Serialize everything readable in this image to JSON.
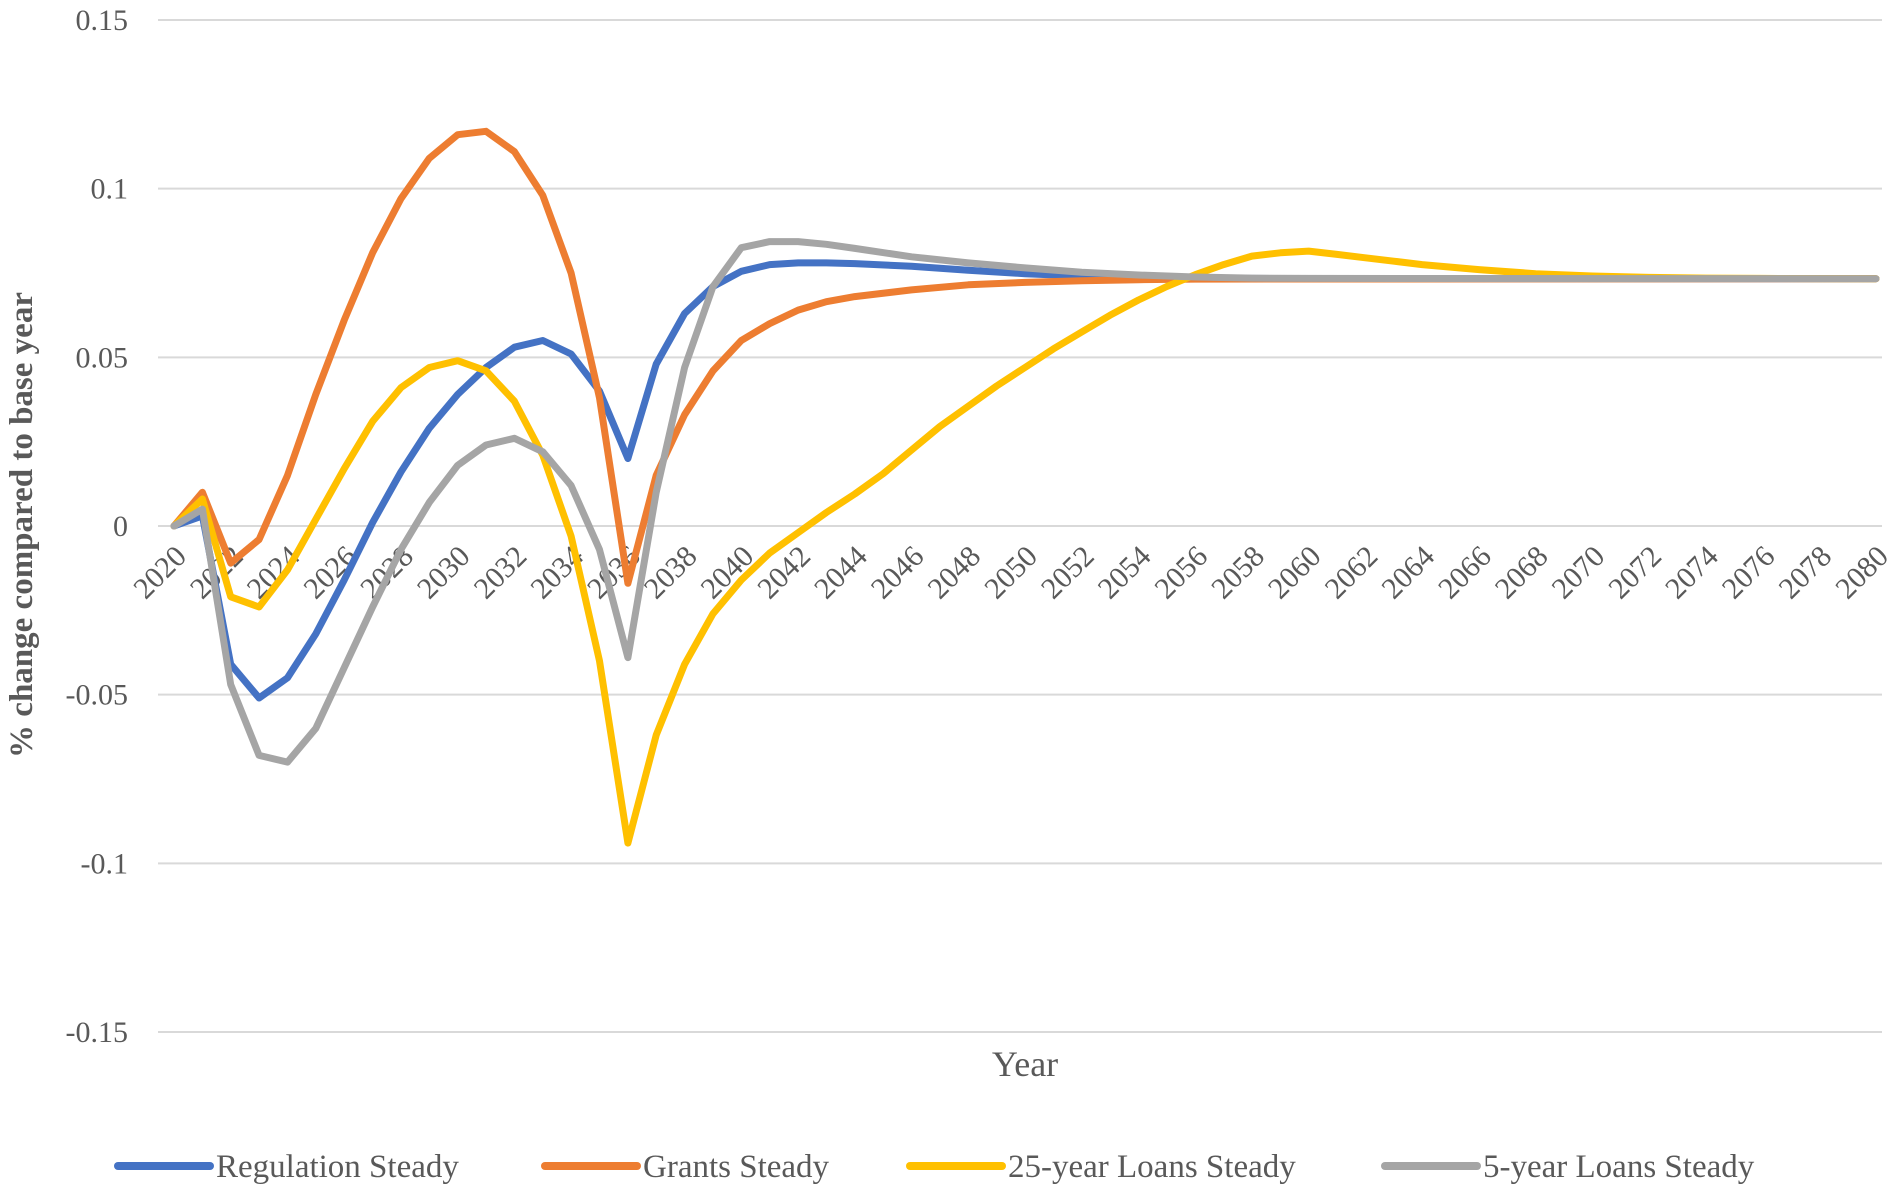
{
  "chart_data": {
    "type": "line",
    "xlabel": "Year",
    "ylabel": "% change compared to base year",
    "ylim": [
      -0.15,
      0.15
    ],
    "yticks": [
      0.15,
      0.1,
      0.05,
      0,
      -0.05,
      -0.1,
      -0.15
    ],
    "ytick_labels": [
      "0.15",
      "0.1",
      "0.05",
      "0",
      "-0.05",
      "-0.1",
      "-0.15"
    ],
    "xlim": [
      2020,
      2080
    ],
    "xtick_labels": [
      "2020",
      "2022",
      "2024",
      "2026",
      "2028",
      "2030",
      "2032",
      "2034",
      "2036",
      "2038",
      "2040",
      "2042",
      "2044",
      "2046",
      "2048",
      "2050",
      "2052",
      "2054",
      "2056",
      "2058",
      "2060",
      "2062",
      "2064",
      "2066",
      "2068",
      "2070",
      "2072",
      "2074",
      "2076",
      "2078",
      "2080"
    ],
    "grid": true,
    "legend_position": "bottom",
    "series": [
      {
        "name": "Regulation Steady",
        "color": "#4472C4",
        "points": [
          [
            2020,
            0
          ],
          [
            2021,
            0.003
          ],
          [
            2022,
            -0.041
          ],
          [
            2023,
            -0.051
          ],
          [
            2024,
            -0.045
          ],
          [
            2025,
            -0.032
          ],
          [
            2026,
            -0.016
          ],
          [
            2027,
            0.001
          ],
          [
            2028,
            0.016
          ],
          [
            2029,
            0.029
          ],
          [
            2030,
            0.039
          ],
          [
            2031,
            0.047
          ],
          [
            2032,
            0.053
          ],
          [
            2033,
            0.055
          ],
          [
            2034,
            0.051
          ],
          [
            2035,
            0.04
          ],
          [
            2036,
            0.02
          ],
          [
            2037,
            0.048
          ],
          [
            2038,
            0.063
          ],
          [
            2039,
            0.071
          ],
          [
            2040,
            0.0755
          ],
          [
            2041,
            0.0775
          ],
          [
            2042,
            0.078
          ],
          [
            2043,
            0.078
          ],
          [
            2044,
            0.0778
          ],
          [
            2046,
            0.077
          ],
          [
            2048,
            0.0758
          ],
          [
            2050,
            0.0748
          ],
          [
            2052,
            0.0741
          ],
          [
            2054,
            0.0737
          ],
          [
            2056,
            0.0735
          ],
          [
            2060,
            0.0733
          ],
          [
            2080,
            0.0733
          ]
        ]
      },
      {
        "name": "Grants Steady",
        "color": "#ED7D31",
        "points": [
          [
            2020,
            0
          ],
          [
            2021,
            0.01
          ],
          [
            2022,
            -0.011
          ],
          [
            2023,
            -0.004
          ],
          [
            2024,
            0.015
          ],
          [
            2025,
            0.039
          ],
          [
            2026,
            0.061
          ],
          [
            2027,
            0.081
          ],
          [
            2028,
            0.097
          ],
          [
            2029,
            0.109
          ],
          [
            2030,
            0.116
          ],
          [
            2031,
            0.117
          ],
          [
            2032,
            0.111
          ],
          [
            2033,
            0.098
          ],
          [
            2034,
            0.075
          ],
          [
            2035,
            0.038
          ],
          [
            2036,
            -0.017
          ],
          [
            2037,
            0.015
          ],
          [
            2038,
            0.033
          ],
          [
            2039,
            0.046
          ],
          [
            2040,
            0.055
          ],
          [
            2041,
            0.06
          ],
          [
            2042,
            0.064
          ],
          [
            2043,
            0.0665
          ],
          [
            2044,
            0.068
          ],
          [
            2046,
            0.07
          ],
          [
            2048,
            0.0715
          ],
          [
            2050,
            0.0722
          ],
          [
            2052,
            0.0727
          ],
          [
            2054,
            0.073
          ],
          [
            2056,
            0.0732
          ],
          [
            2080,
            0.0733
          ]
        ]
      },
      {
        "name": "25-year Loans Steady",
        "color": "#FFC000",
        "points": [
          [
            2020,
            0
          ],
          [
            2021,
            0.008
          ],
          [
            2022,
            -0.021
          ],
          [
            2023,
            -0.024
          ],
          [
            2024,
            -0.013
          ],
          [
            2025,
            0.002
          ],
          [
            2026,
            0.017
          ],
          [
            2027,
            0.031
          ],
          [
            2028,
            0.041
          ],
          [
            2029,
            0.047
          ],
          [
            2030,
            0.049
          ],
          [
            2031,
            0.046
          ],
          [
            2032,
            0.037
          ],
          [
            2033,
            0.021
          ],
          [
            2034,
            -0.003
          ],
          [
            2035,
            -0.04
          ],
          [
            2036,
            -0.094
          ],
          [
            2037,
            -0.062
          ],
          [
            2038,
            -0.041
          ],
          [
            2039,
            -0.026
          ],
          [
            2040,
            -0.016
          ],
          [
            2041,
            -0.008
          ],
          [
            2042,
            -0.002
          ],
          [
            2043,
            0.004
          ],
          [
            2044,
            0.0095
          ],
          [
            2045,
            0.0155
          ],
          [
            2046,
            0.0225
          ],
          [
            2047,
            0.0295
          ],
          [
            2048,
            0.0355
          ],
          [
            2049,
            0.0415
          ],
          [
            2050,
            0.047
          ],
          [
            2051,
            0.0525
          ],
          [
            2052,
            0.0575
          ],
          [
            2053,
            0.0625
          ],
          [
            2054,
            0.067
          ],
          [
            2055,
            0.071
          ],
          [
            2056,
            0.0745
          ],
          [
            2057,
            0.0775
          ],
          [
            2058,
            0.08
          ],
          [
            2059,
            0.081
          ],
          [
            2060,
            0.0815
          ],
          [
            2061,
            0.0805
          ],
          [
            2062,
            0.0795
          ],
          [
            2063,
            0.0785
          ],
          [
            2064,
            0.0775
          ],
          [
            2066,
            0.076
          ],
          [
            2068,
            0.0748
          ],
          [
            2070,
            0.0741
          ],
          [
            2072,
            0.0737
          ],
          [
            2074,
            0.0735
          ],
          [
            2076,
            0.0734
          ],
          [
            2080,
            0.0733
          ]
        ]
      },
      {
        "name": "5-year Loans Steady",
        "color": "#A5A5A5",
        "points": [
          [
            2020,
            0
          ],
          [
            2021,
            0.005
          ],
          [
            2022,
            -0.047
          ],
          [
            2023,
            -0.068
          ],
          [
            2024,
            -0.07
          ],
          [
            2025,
            -0.06
          ],
          [
            2026,
            -0.042
          ],
          [
            2027,
            -0.024
          ],
          [
            2028,
            -0.007
          ],
          [
            2029,
            0.007
          ],
          [
            2030,
            0.018
          ],
          [
            2031,
            0.024
          ],
          [
            2032,
            0.026
          ],
          [
            2033,
            0.022
          ],
          [
            2034,
            0.012
          ],
          [
            2035,
            -0.007
          ],
          [
            2036,
            -0.039
          ],
          [
            2037,
            0.01
          ],
          [
            2038,
            0.047
          ],
          [
            2039,
            0.071
          ],
          [
            2040,
            0.0825
          ],
          [
            2041,
            0.0843
          ],
          [
            2042,
            0.0843
          ],
          [
            2043,
            0.0835
          ],
          [
            2044,
            0.0823
          ],
          [
            2046,
            0.0798
          ],
          [
            2048,
            0.078
          ],
          [
            2050,
            0.0765
          ],
          [
            2052,
            0.0752
          ],
          [
            2054,
            0.0744
          ],
          [
            2056,
            0.0738
          ],
          [
            2058,
            0.0735
          ],
          [
            2060,
            0.0734
          ],
          [
            2080,
            0.0733
          ]
        ]
      }
    ]
  }
}
